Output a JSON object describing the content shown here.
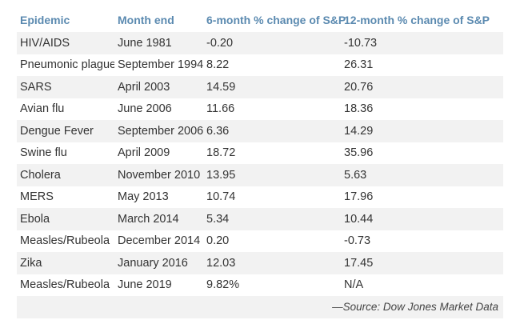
{
  "table": {
    "headers": [
      "Epidemic",
      "Month end",
      "6-month % change of S&P",
      "12-month % change of S&P"
    ],
    "rows": [
      [
        "HIV/AIDS",
        "June 1981",
        "-0.20",
        "-10.73"
      ],
      [
        "Pneumonic plague",
        "September 1994",
        "8.22",
        "26.31"
      ],
      [
        "SARS",
        "April 2003",
        "14.59",
        "20.76"
      ],
      [
        "Avian flu",
        "June 2006",
        "11.66",
        "18.36"
      ],
      [
        "Dengue Fever",
        "September 2006",
        "6.36",
        "14.29"
      ],
      [
        "Swine flu",
        "April 2009",
        "18.72",
        "35.96"
      ],
      [
        "Cholera",
        "November 2010",
        "13.95",
        "5.63"
      ],
      [
        "MERS",
        "May 2013",
        "10.74",
        "17.96"
      ],
      [
        "Ebola",
        "March 2014",
        "5.34",
        "10.44"
      ],
      [
        "Measles/Rubeola",
        "December 2014",
        "0.20",
        "-0.73"
      ],
      [
        "Zika",
        "January 2016",
        "12.03",
        "17.45"
      ],
      [
        "Measles/Rubeola",
        "June 2019",
        "9.82%",
        "N/A"
      ]
    ],
    "source": "—Source: Dow Jones Market Data"
  },
  "colors": {
    "header_text": "#5b8ab0",
    "stripe": "#f2f2f2",
    "body_text": "#333333"
  }
}
